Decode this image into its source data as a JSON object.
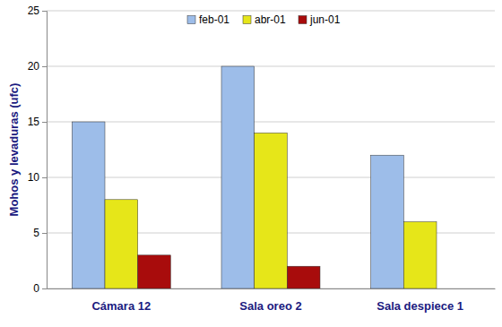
{
  "chart_data": {
    "type": "bar",
    "y_label": "Mohos y levaduras (ufc)",
    "categories": [
      "Cámara 12",
      "Sala oreo 2",
      "Sala despiece 1"
    ],
    "series": [
      {
        "name": "feb-01",
        "color": "#9dbde9",
        "values": [
          15,
          20,
          12
        ]
      },
      {
        "name": "abr-01",
        "color": "#e6e619",
        "values": [
          8,
          14,
          6
        ]
      },
      {
        "name": "jun-01",
        "color": "#a80c0c",
        "values": [
          3,
          2,
          0
        ]
      }
    ],
    "ylim": [
      0,
      25
    ],
    "yticks": [
      0,
      5,
      10,
      15,
      20,
      25
    ],
    "grid": true,
    "legend": "top"
  }
}
